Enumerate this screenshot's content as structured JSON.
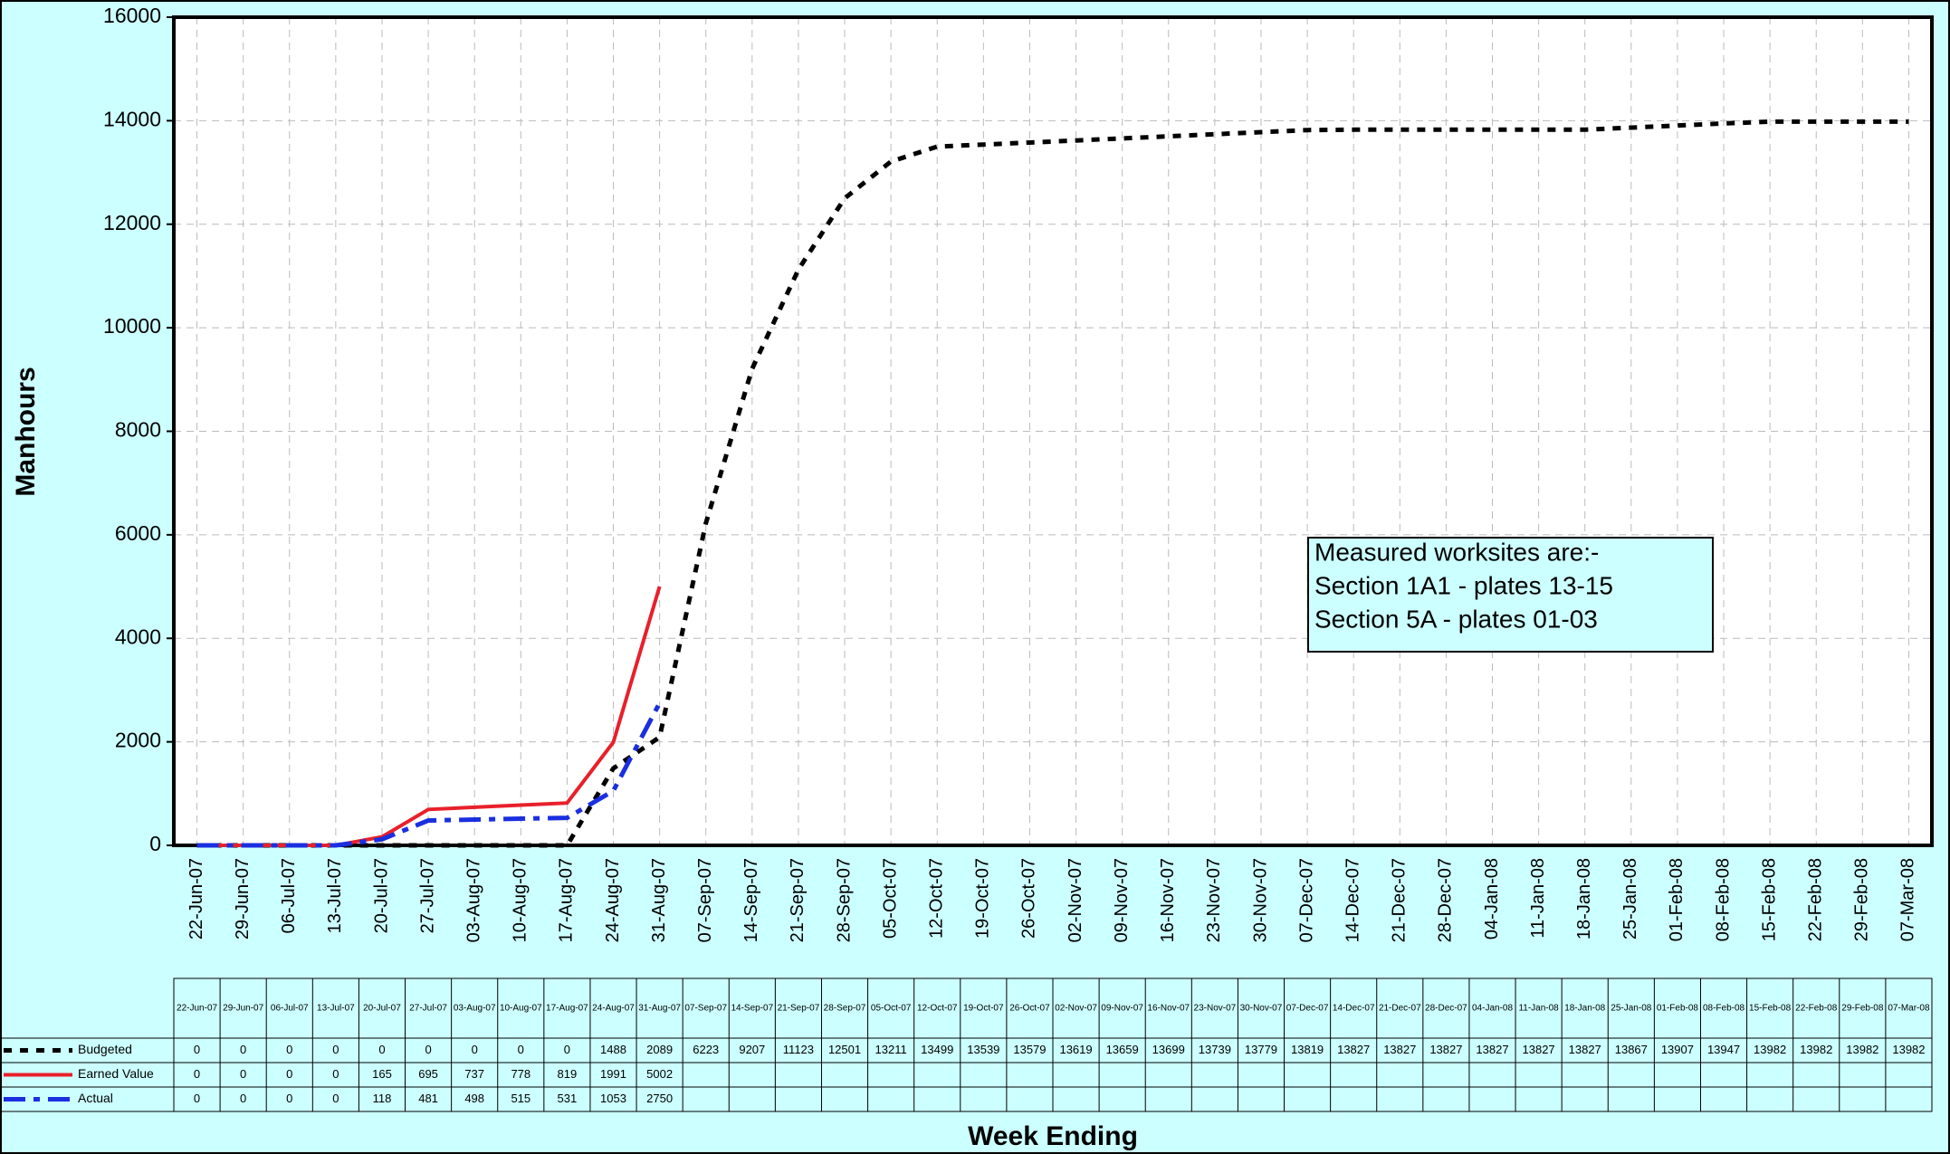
{
  "chart_data": {
    "type": "line",
    "y_label": "Manhours",
    "x_label": "Week Ending",
    "categories": [
      "22-Jun-07",
      "29-Jun-07",
      "06-Jul-07",
      "13-Jul-07",
      "20-Jul-07",
      "27-Jul-07",
      "03-Aug-07",
      "10-Aug-07",
      "17-Aug-07",
      "24-Aug-07",
      "31-Aug-07",
      "07-Sep-07",
      "14-Sep-07",
      "21-Sep-07",
      "28-Sep-07",
      "05-Oct-07",
      "12-Oct-07",
      "19-Oct-07",
      "26-Oct-07",
      "02-Nov-07",
      "09-Nov-07",
      "16-Nov-07",
      "23-Nov-07",
      "30-Nov-07",
      "07-Dec-07",
      "14-Dec-07",
      "21-Dec-07",
      "28-Dec-07",
      "04-Jan-08",
      "11-Jan-08",
      "18-Jan-08",
      "25-Jan-08",
      "01-Feb-08",
      "08-Feb-08",
      "15-Feb-08",
      "22-Feb-08",
      "29-Feb-08",
      "07-Mar-08"
    ],
    "series": [
      {
        "name": "Budgeted",
        "color": "#000000",
        "dash": "dotted",
        "values": [
          0,
          0,
          0,
          0,
          0,
          0,
          0,
          0,
          0,
          1488,
          2089,
          6223,
          9207,
          11123,
          12501,
          13211,
          13499,
          13539,
          13579,
          13619,
          13659,
          13699,
          13739,
          13779,
          13819,
          13827,
          13827,
          13827,
          13827,
          13827,
          13827,
          13867,
          13907,
          13947,
          13982,
          13982,
          13982,
          13982
        ]
      },
      {
        "name": "Earned Value",
        "color": "#e8202a",
        "dash": "solid",
        "values": [
          0,
          0,
          0,
          0,
          165,
          695,
          737,
          778,
          819,
          1991,
          5002,
          null,
          null,
          null,
          null,
          null,
          null,
          null,
          null,
          null,
          null,
          null,
          null,
          null,
          null,
          null,
          null,
          null,
          null,
          null,
          null,
          null,
          null,
          null,
          null,
          null,
          null,
          null
        ]
      },
      {
        "name": "Actual",
        "color": "#1a2fe0",
        "dash": "dashdot",
        "values": [
          0,
          0,
          0,
          0,
          118,
          481,
          498,
          515,
          531,
          1053,
          2750,
          null,
          null,
          null,
          null,
          null,
          null,
          null,
          null,
          null,
          null,
          null,
          null,
          null,
          null,
          null,
          null,
          null,
          null,
          null,
          null,
          null,
          null,
          null,
          null,
          null,
          null,
          null
        ]
      }
    ],
    "ylim": [
      0,
      16000
    ],
    "yticks": [
      0,
      2000,
      4000,
      6000,
      8000,
      10000,
      12000,
      14000,
      16000
    ],
    "grid": true,
    "annotation": [
      "Measured worksites are:-",
      "Section 1A1 - plates 13-15",
      "Section 5A - plates 01-03"
    ]
  }
}
